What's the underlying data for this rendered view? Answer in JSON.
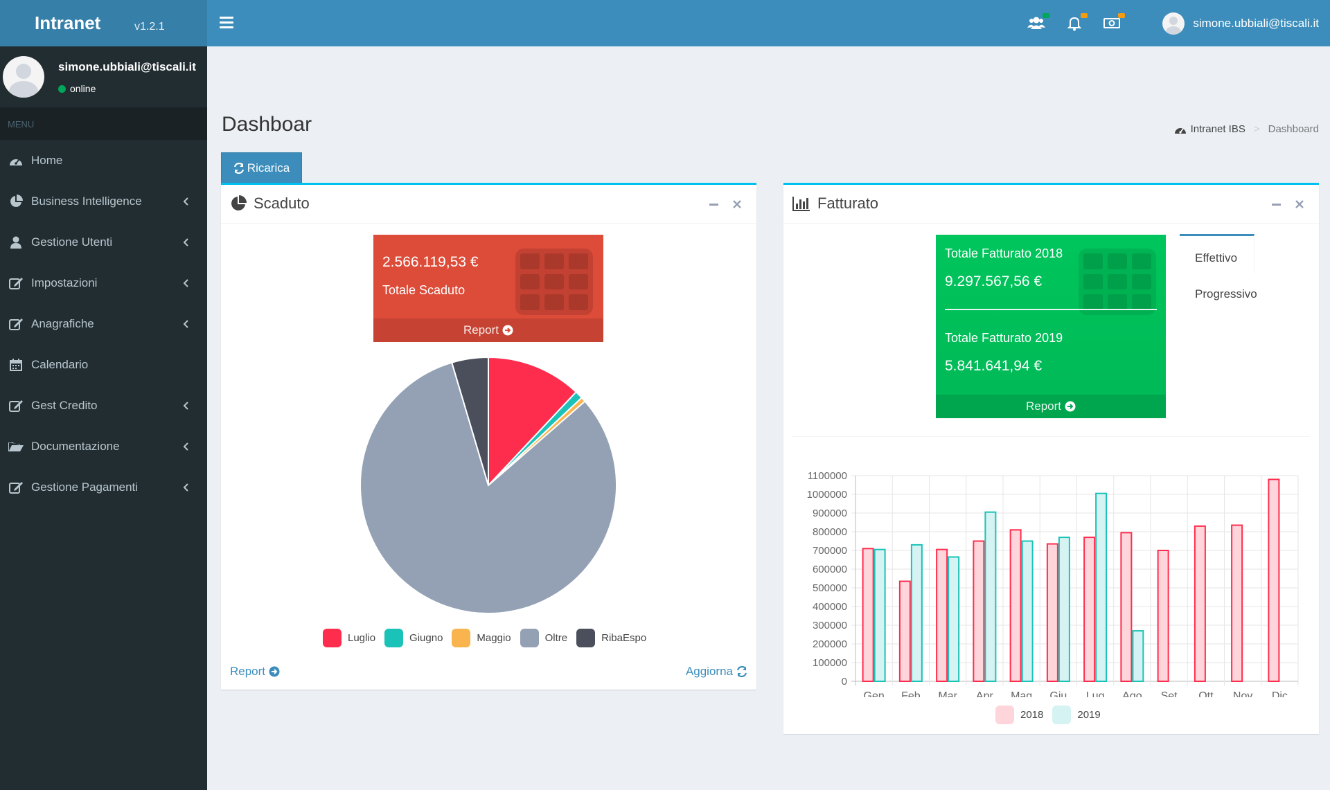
{
  "app": {
    "brand": "Intranet",
    "version": "v1.2.1"
  },
  "user": {
    "email": "simone.ubbiali@tiscali.it",
    "status": "online"
  },
  "sidebar": {
    "header": "MENU",
    "items": [
      {
        "label": "Home",
        "icon": "dashboard-icon",
        "submenu": false
      },
      {
        "label": "Business Intelligence",
        "icon": "pie-chart-icon",
        "submenu": true
      },
      {
        "label": "Gestione Utenti",
        "icon": "user-icon",
        "submenu": true
      },
      {
        "label": "Impostazioni",
        "icon": "edit-icon",
        "submenu": true
      },
      {
        "label": "Anagrafiche",
        "icon": "edit-icon",
        "submenu": true
      },
      {
        "label": "Calendario",
        "icon": "calendar-icon",
        "submenu": false
      },
      {
        "label": "Gest Credito",
        "icon": "edit-icon",
        "submenu": true
      },
      {
        "label": "Documentazione",
        "icon": "folder-open-icon",
        "submenu": true
      },
      {
        "label": "Gestione Pagamenti",
        "icon": "edit-icon",
        "submenu": true
      }
    ]
  },
  "topbar": {
    "icons": [
      "users-icon",
      "bell-icon",
      "money-icon"
    ],
    "badge_colors": [
      "#00a65a",
      "#f39c12",
      "#f39c12"
    ]
  },
  "page": {
    "title": "Dashboar"
  },
  "breadcrumb": {
    "root": "Intranet IBS",
    "current": "Dashboard"
  },
  "reload_button": "Ricarica",
  "scaduto": {
    "title": "Scaduto",
    "amount": "2.566.119,53 €",
    "label": "Totale Scaduto",
    "report": "Report",
    "footer_report": "Report",
    "footer_refresh": "Aggiorna"
  },
  "fatturato": {
    "title": "Fatturato",
    "total_2018_label": "Totale Fatturato 2018",
    "total_2018_value": "9.297.567,56 €",
    "total_2019_label": "Totale Fatturato 2019",
    "total_2019_value": "5.841.641,94 €",
    "report": "Report",
    "tabs": [
      "Effettivo",
      "Progressivo"
    ]
  },
  "colors": {
    "primary": "#3c8dbc",
    "header_dark": "#367fa9",
    "sidebar": "#222d32",
    "red_box": "#dd4b39",
    "green_box": "#00a65a",
    "info_border": "#00c0ef"
  },
  "chart_data": [
    {
      "type": "pie",
      "categories": [
        "Luglio",
        "Giugno",
        "Maggio",
        "Oltre",
        "RibaEspo"
      ],
      "values": [
        12.0,
        1.0,
        0.6,
        81.8,
        4.6
      ],
      "colors": [
        "#ff2d4d",
        "#1bc2b8",
        "#f9b44d",
        "#94a1b5",
        "#4b4f5c"
      ],
      "legend_position": "bottom"
    },
    {
      "type": "bar",
      "categories": [
        "Gen",
        "Feb",
        "Mar",
        "Apr",
        "Mag",
        "Giu",
        "Lug",
        "Ago",
        "Set",
        "Ott",
        "Nov",
        "Dic"
      ],
      "series": [
        {
          "name": "2018",
          "values": [
            710000,
            535000,
            705000,
            750000,
            810000,
            735000,
            770000,
            795000,
            700000,
            830000,
            835000,
            1080000
          ]
        },
        {
          "name": "2019",
          "values": [
            705000,
            730000,
            665000,
            905000,
            750000,
            770000,
            1005000,
            270000,
            null,
            null,
            null,
            null
          ]
        }
      ],
      "ylim": [
        0,
        1100000
      ],
      "yticks": [
        0,
        100000,
        200000,
        300000,
        400000,
        500000,
        600000,
        700000,
        800000,
        900000,
        1000000,
        1100000
      ],
      "grid": true,
      "legend_position": "bottom"
    }
  ]
}
